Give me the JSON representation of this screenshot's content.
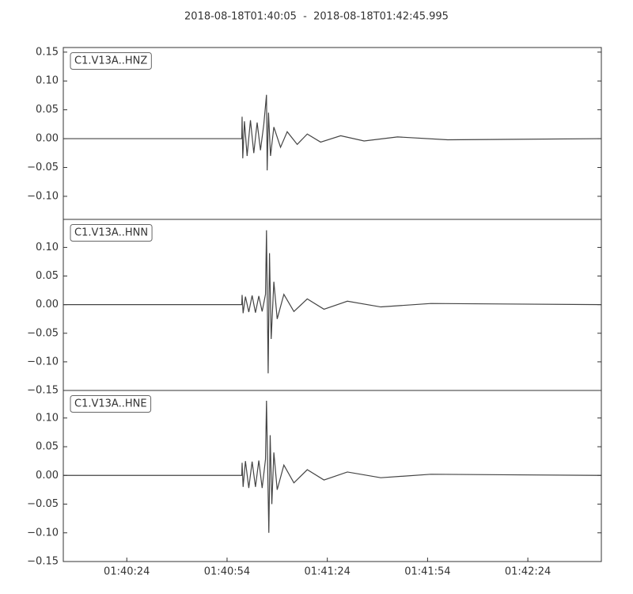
{
  "chart_data": [
    {
      "type": "line",
      "title": "2018-08-18T01:40:05  -  2018-08-18T01:42:45.995",
      "label": "C1.V13A..HNZ",
      "xlim": [
        "01:40:05",
        "01:42:45.995"
      ],
      "ylim": [
        -0.14,
        0.158
      ],
      "yticks": [
        {
          "value": -0.1,
          "label": "−0.10"
        },
        {
          "value": -0.05,
          "label": "−0.05"
        },
        {
          "value": 0,
          "label": "0.00"
        },
        0.05,
        {
          "value": 0.1,
          "label": "0.10"
        },
        0.15
      ],
      "series": [
        {
          "color": "#444444",
          "x": [
            "01:40:05",
            "01:40:58.4",
            "01:40:58.5",
            "01:40:58.7",
            "01:40:59.2",
            "01:41:00",
            "01:41:01",
            "01:41:02",
            "01:41:03",
            "01:41:04",
            "01:41:05",
            "01:41:05.8",
            "01:41:06",
            "01:41:06.4",
            "01:41:07",
            "01:41:08",
            "01:41:10",
            "01:41:12",
            "01:41:15",
            "01:41:18",
            "01:41:22",
            "01:41:28",
            "01:41:35",
            "01:41:45",
            "01:42:00",
            "01:42:45.995"
          ],
          "values": [
            0,
            0,
            0.038,
            -0.034,
            0.03,
            -0.03,
            0.032,
            -0.025,
            0.028,
            -0.02,
            0.025,
            0.076,
            -0.055,
            0.045,
            -0.03,
            0.02,
            -0.015,
            0.012,
            -0.01,
            0.008,
            -0.006,
            0.005,
            -0.004,
            0.003,
            -0.002,
            0
          ]
        }
      ]
    },
    {
      "type": "line",
      "label": "C1.V13A..HNN",
      "xlim": [
        "01:40:05",
        "01:42:45.995"
      ],
      "ylim": [
        -0.15,
        0.149
      ],
      "yticks": [
        {
          "value": -0.15,
          "label": "−0.15"
        },
        {
          "value": -0.1,
          "label": "−0.10"
        },
        {
          "value": -0.05,
          "label": "−0.05"
        },
        {
          "value": 0,
          "label": "0.00"
        },
        0.05,
        {
          "value": 0.1,
          "label": "0.10"
        }
      ],
      "series": [
        {
          "color": "#444444",
          "x": [
            "01:40:05",
            "01:40:58.4",
            "01:40:58.5",
            "01:40:58.8",
            "01:40:59.5",
            "01:41:00.5",
            "01:41:01.5",
            "01:41:02.5",
            "01:41:03.5",
            "01:41:04.5",
            "01:41:05.5",
            "01:41:05.8",
            "01:41:06.3",
            "01:41:06.7",
            "01:41:07.2",
            "01:41:08",
            "01:41:09",
            "01:41:11",
            "01:41:14",
            "01:41:18",
            "01:41:23",
            "01:41:30",
            "01:41:40",
            "01:41:55",
            "01:42:45.995"
          ],
          "values": [
            0,
            0,
            0.017,
            -0.015,
            0.014,
            -0.013,
            0.016,
            -0.014,
            0.015,
            -0.012,
            0.018,
            0.13,
            -0.12,
            0.09,
            -0.06,
            0.04,
            -0.025,
            0.018,
            -0.012,
            0.01,
            -0.008,
            0.006,
            -0.004,
            0.002,
            0
          ]
        }
      ]
    },
    {
      "type": "line",
      "label": "C1.V13A..HNE",
      "xlim": [
        "01:40:05",
        "01:42:45.995"
      ],
      "ylim": [
        -0.15,
        0.148
      ],
      "xticks": [
        "01:40:24",
        "01:40:54",
        "01:41:24",
        "01:41:54",
        "01:42:24"
      ],
      "yticks": [
        {
          "value": -0.15,
          "label": "−0.15"
        },
        {
          "value": -0.1,
          "label": "−0.10"
        },
        {
          "value": -0.05,
          "label": "−0.05"
        },
        {
          "value": 0,
          "label": "0.00"
        },
        0.05,
        {
          "value": 0.1,
          "label": "0.10"
        }
      ],
      "series": [
        {
          "color": "#444444",
          "x": [
            "01:40:05",
            "01:40:58.4",
            "01:40:58.5",
            "01:40:58.8",
            "01:40:59.5",
            "01:41:00.5",
            "01:41:01.5",
            "01:41:02.5",
            "01:41:03.5",
            "01:41:04.5",
            "01:41:05.5",
            "01:41:05.8",
            "01:41:06.5",
            "01:41:06.9",
            "01:41:07.4",
            "01:41:08",
            "01:41:09",
            "01:41:11",
            "01:41:14",
            "01:41:18",
            "01:41:23",
            "01:41:30",
            "01:41:40",
            "01:41:55",
            "01:42:45.995"
          ],
          "values": [
            0,
            0,
            0.022,
            -0.02,
            0.025,
            -0.022,
            0.024,
            -0.02,
            0.026,
            -0.022,
            0.028,
            0.13,
            -0.1,
            0.07,
            -0.05,
            0.04,
            -0.025,
            0.018,
            -0.013,
            0.01,
            -0.008,
            0.006,
            -0.004,
            0.002,
            0
          ]
        }
      ]
    }
  ]
}
